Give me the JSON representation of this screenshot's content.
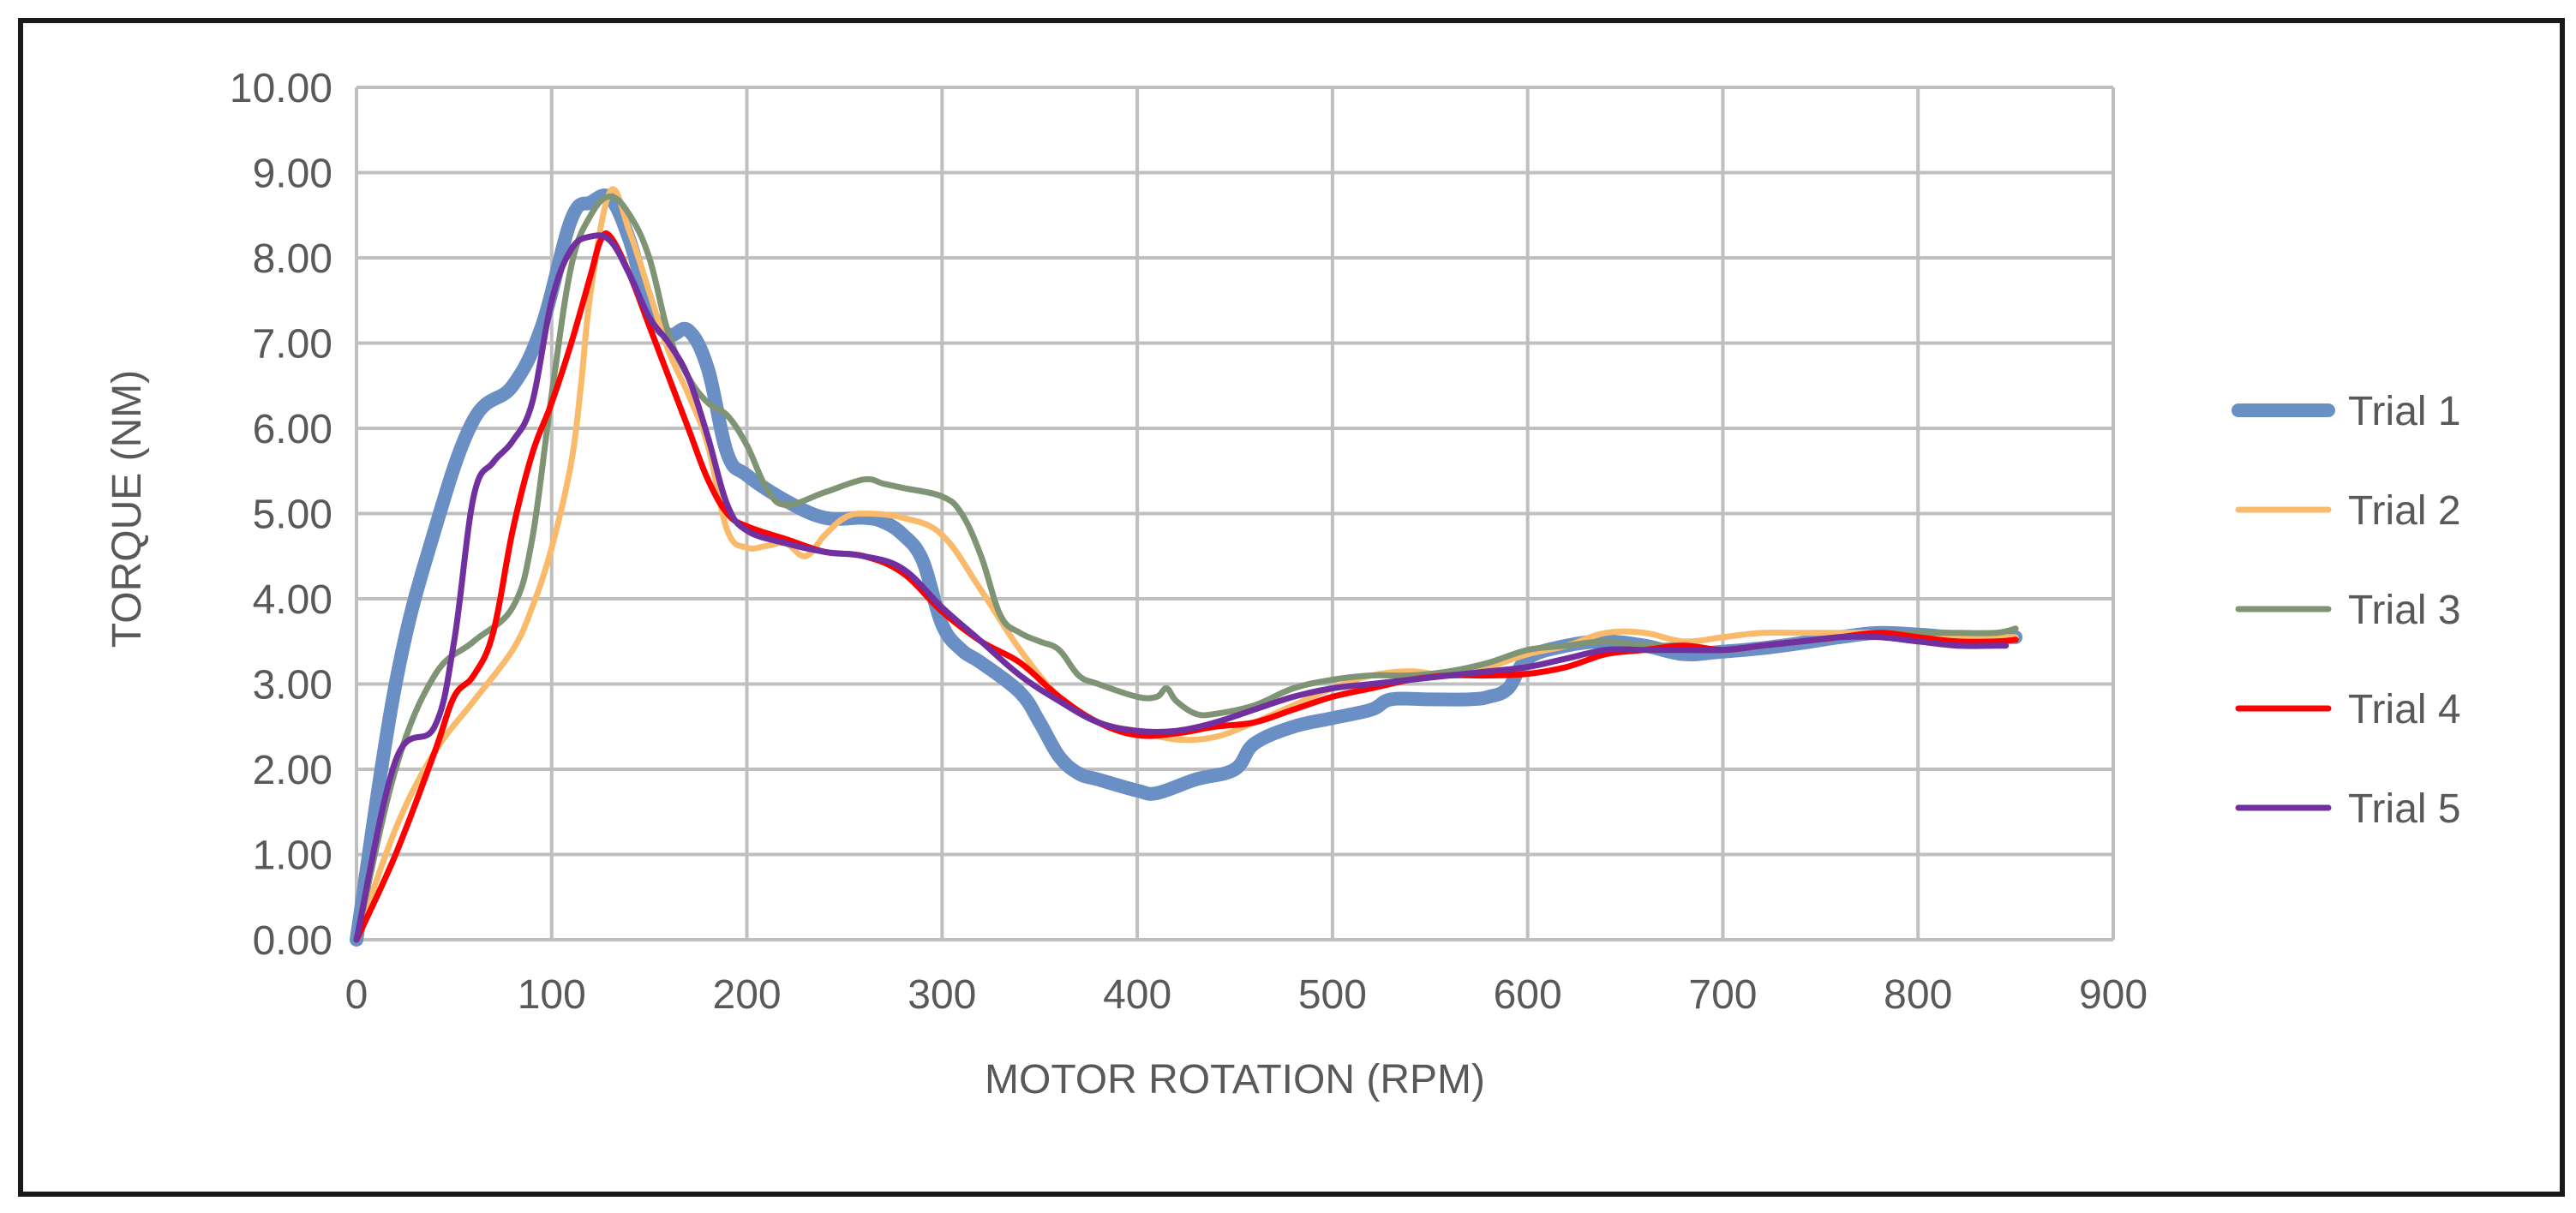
{
  "chart_data": {
    "type": "line",
    "title": "",
    "xlabel": "MOTOR ROTATION (RPM)",
    "ylabel": "TORQUE (NM)",
    "xlim": [
      0,
      900
    ],
    "ylim": [
      0,
      10
    ],
    "x_ticks": [
      "0",
      "100",
      "200",
      "300",
      "400",
      "500",
      "600",
      "700",
      "800",
      "900"
    ],
    "y_ticks": [
      "0.00",
      "1.00",
      "2.00",
      "3.00",
      "4.00",
      "5.00",
      "6.00",
      "7.00",
      "8.00",
      "9.00",
      "10.00"
    ],
    "grid": true,
    "legend_position": "right",
    "series": [
      {
        "name": "Trial 1",
        "color": "#6A8FC4",
        "x": [
          0,
          20,
          40,
          60,
          80,
          95,
          110,
          120,
          130,
          140,
          150,
          160,
          170,
          180,
          190,
          200,
          220,
          240,
          260,
          270,
          280,
          290,
          300,
          310,
          320,
          340,
          350,
          360,
          370,
          380,
          400,
          410,
          430,
          450,
          460,
          480,
          500,
          520,
          530,
          550,
          570,
          580,
          590,
          600,
          620,
          640,
          660,
          680,
          700,
          720,
          740,
          760,
          780,
          800,
          820,
          840,
          850
        ],
        "values": [
          0.0,
          3.0,
          4.8,
          6.1,
          6.5,
          7.2,
          8.45,
          8.65,
          8.7,
          8.2,
          7.4,
          7.1,
          7.15,
          6.7,
          5.7,
          5.45,
          5.15,
          4.95,
          4.95,
          4.9,
          4.75,
          4.45,
          3.7,
          3.4,
          3.25,
          2.9,
          2.55,
          2.15,
          1.95,
          1.88,
          1.75,
          1.72,
          1.88,
          2.0,
          2.3,
          2.5,
          2.6,
          2.7,
          2.82,
          2.82,
          2.82,
          2.85,
          2.95,
          3.3,
          3.45,
          3.5,
          3.45,
          3.35,
          3.38,
          3.42,
          3.48,
          3.55,
          3.6,
          3.58,
          3.55,
          3.55,
          3.55
        ]
      },
      {
        "name": "Trial 2",
        "color": "#F9BB6B",
        "x": [
          0,
          20,
          40,
          60,
          80,
          90,
          100,
          110,
          115,
          120,
          130,
          140,
          150,
          160,
          170,
          180,
          190,
          200,
          210,
          220,
          230,
          240,
          250,
          260,
          280,
          300,
          320,
          340,
          360,
          380,
          400,
          420,
          440,
          460,
          480,
          500,
          520,
          540,
          560,
          580,
          600,
          620,
          640,
          660,
          680,
          700,
          720,
          740,
          760,
          780,
          800,
          820,
          840,
          850
        ],
        "values": [
          0.0,
          1.3,
          2.2,
          2.8,
          3.4,
          3.9,
          4.6,
          5.6,
          6.5,
          7.6,
          8.78,
          8.3,
          7.6,
          6.9,
          6.4,
          5.8,
          4.8,
          4.6,
          4.62,
          4.65,
          4.5,
          4.75,
          4.95,
          5.0,
          4.95,
          4.75,
          4.1,
          3.4,
          2.85,
          2.55,
          2.45,
          2.35,
          2.38,
          2.55,
          2.75,
          2.95,
          3.1,
          3.15,
          3.1,
          3.2,
          3.35,
          3.45,
          3.6,
          3.6,
          3.5,
          3.55,
          3.6,
          3.6,
          3.6,
          3.6,
          3.55,
          3.55,
          3.55,
          3.55
        ]
      },
      {
        "name": "Trial 3",
        "color": "#7F9474",
        "x": [
          0,
          20,
          40,
          60,
          80,
          90,
          100,
          110,
          120,
          130,
          140,
          150,
          160,
          170,
          180,
          190,
          200,
          210,
          220,
          240,
          260,
          270,
          280,
          300,
          310,
          320,
          330,
          340,
          350,
          360,
          370,
          380,
          400,
          410,
          415,
          420,
          430,
          440,
          460,
          480,
          500,
          520,
          540,
          560,
          580,
          600,
          620,
          640,
          660,
          680,
          700,
          720,
          740,
          760,
          780,
          800,
          820,
          840,
          850
        ],
        "values": [
          0.0,
          2.0,
          3.1,
          3.5,
          3.9,
          4.7,
          6.4,
          7.9,
          8.5,
          8.72,
          8.5,
          8.0,
          7.1,
          6.6,
          6.3,
          6.15,
          5.8,
          5.3,
          5.1,
          5.25,
          5.4,
          5.35,
          5.3,
          5.2,
          5.0,
          4.5,
          3.8,
          3.6,
          3.5,
          3.4,
          3.1,
          3.0,
          2.85,
          2.85,
          2.95,
          2.8,
          2.65,
          2.65,
          2.75,
          2.95,
          3.05,
          3.1,
          3.1,
          3.15,
          3.25,
          3.4,
          3.45,
          3.5,
          3.45,
          3.45,
          3.4,
          3.45,
          3.5,
          3.55,
          3.6,
          3.6,
          3.6,
          3.6,
          3.65
        ]
      },
      {
        "name": "Trial 4",
        "color": "#FF0000",
        "x": [
          0,
          20,
          40,
          50,
          60,
          70,
          80,
          90,
          100,
          110,
          120,
          125,
          130,
          140,
          150,
          160,
          170,
          180,
          190,
          200,
          220,
          240,
          260,
          280,
          300,
          320,
          340,
          360,
          380,
          400,
          420,
          440,
          460,
          480,
          500,
          520,
          540,
          560,
          580,
          600,
          620,
          640,
          660,
          680,
          700,
          720,
          740,
          760,
          780,
          800,
          820,
          840,
          850
        ],
        "values": [
          0.0,
          1.0,
          2.2,
          2.85,
          3.1,
          3.6,
          4.8,
          5.7,
          6.3,
          7.0,
          7.8,
          8.2,
          8.25,
          7.8,
          7.2,
          6.6,
          6.0,
          5.4,
          5.0,
          4.85,
          4.7,
          4.55,
          4.5,
          4.3,
          3.85,
          3.5,
          3.25,
          2.85,
          2.55,
          2.4,
          2.42,
          2.5,
          2.55,
          2.7,
          2.85,
          2.95,
          3.05,
          3.1,
          3.1,
          3.12,
          3.2,
          3.35,
          3.4,
          3.45,
          3.4,
          3.45,
          3.5,
          3.55,
          3.6,
          3.55,
          3.5,
          3.5,
          3.52
        ]
      },
      {
        "name": "Trial 5",
        "color": "#7030A0",
        "x": [
          0,
          20,
          40,
          50,
          60,
          70,
          80,
          90,
          100,
          110,
          120,
          130,
          140,
          150,
          160,
          170,
          180,
          190,
          200,
          220,
          240,
          260,
          280,
          300,
          320,
          340,
          360,
          380,
          400,
          420,
          440,
          460,
          480,
          500,
          520,
          540,
          560,
          580,
          600,
          620,
          640,
          660,
          680,
          700,
          720,
          740,
          760,
          780,
          800,
          820,
          840,
          845
        ],
        "values": [
          0.0,
          2.1,
          2.5,
          3.5,
          5.2,
          5.6,
          5.85,
          6.3,
          7.5,
          8.1,
          8.25,
          8.2,
          7.8,
          7.3,
          7.0,
          6.6,
          5.9,
          5.1,
          4.8,
          4.65,
          4.55,
          4.5,
          4.35,
          3.9,
          3.5,
          3.1,
          2.8,
          2.55,
          2.45,
          2.45,
          2.55,
          2.7,
          2.85,
          2.95,
          3.0,
          3.05,
          3.1,
          3.15,
          3.2,
          3.3,
          3.4,
          3.4,
          3.4,
          3.4,
          3.45,
          3.5,
          3.55,
          3.55,
          3.5,
          3.45,
          3.45,
          3.45
        ]
      }
    ]
  }
}
